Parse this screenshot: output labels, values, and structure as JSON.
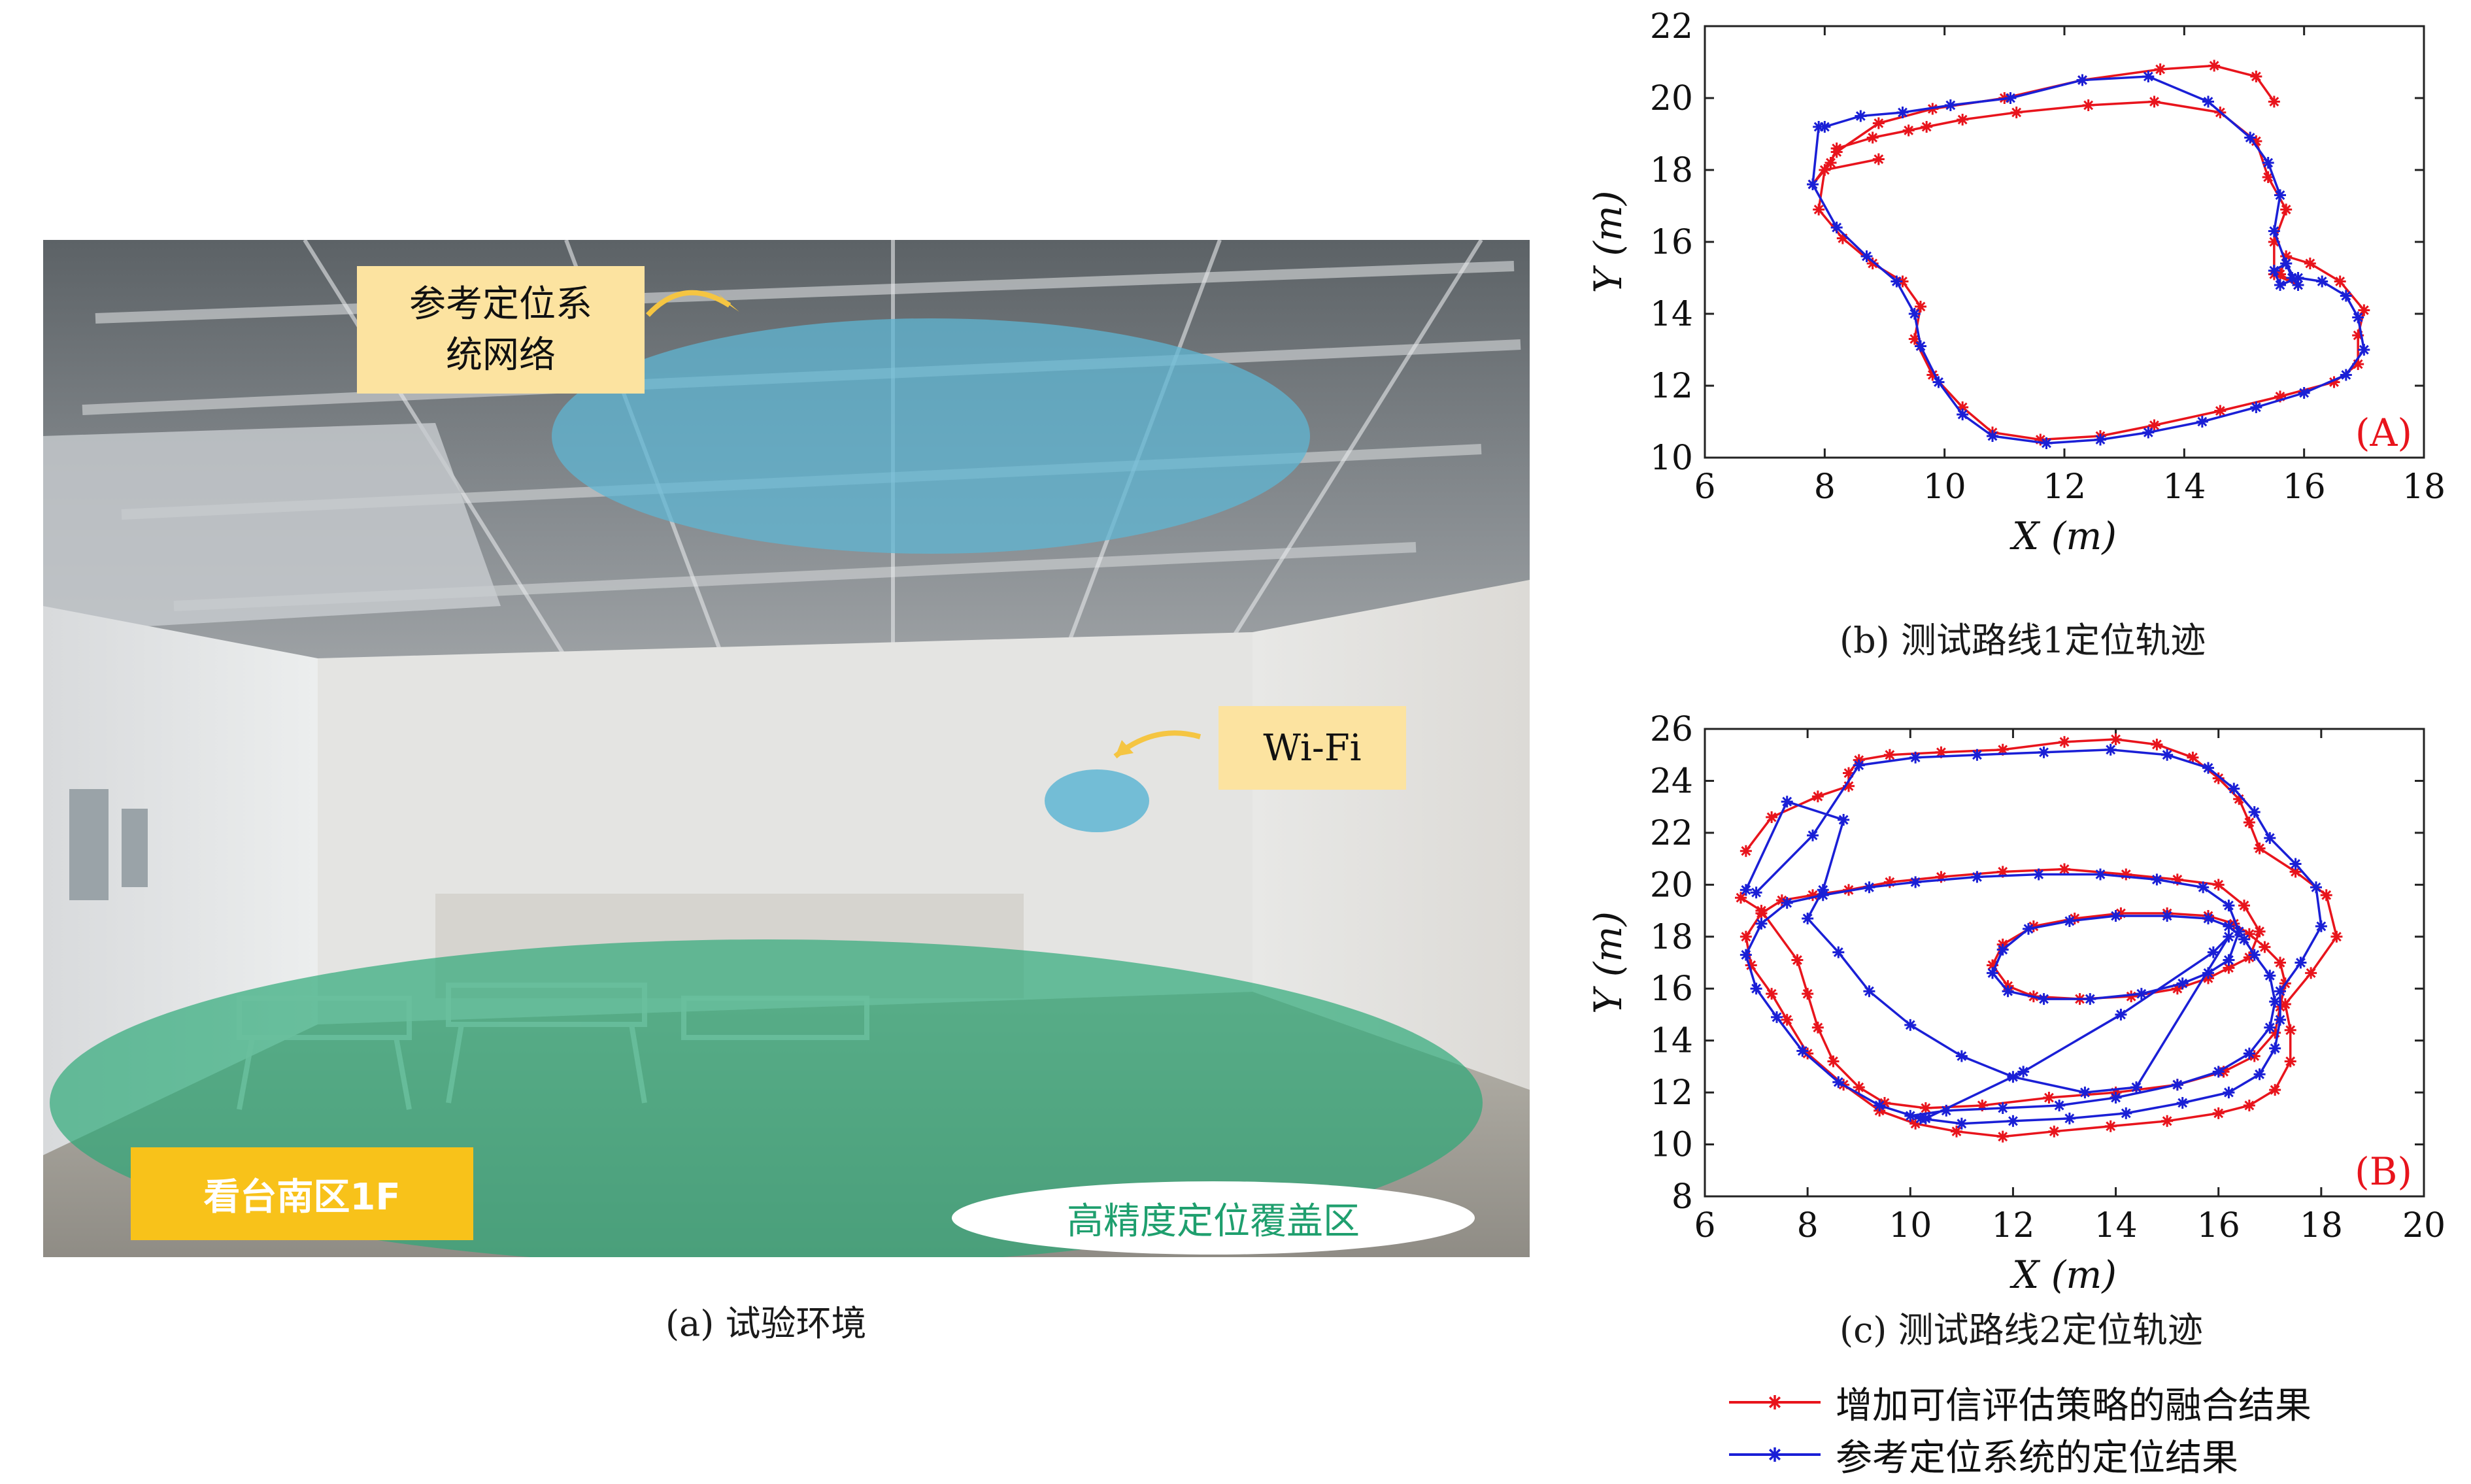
{
  "photo": {
    "caption": "(a) 试验环境",
    "annotations": {
      "ref_network": "参考定位系\n统网络",
      "wifi": "Wi-Fi",
      "area": "看台南区1F",
      "coverage": "高精度定位覆盖区"
    },
    "colors": {
      "ref_ellipse": "#5fb6d3",
      "wifi_ellipse": "#5fb6d3",
      "coverage": "#2aa876",
      "label_bg": "#fce3a0",
      "area_bg": "#f8c21a",
      "arrow": "#f5c542"
    }
  },
  "chart_data": [
    {
      "type": "line",
      "caption": "(b) 测试路线1定位轨迹",
      "panel_label": "(A)",
      "xlabel": "X (m)",
      "ylabel": "Y (m)",
      "xlim": [
        6,
        18
      ],
      "ylim": [
        10,
        22
      ],
      "xticks": [
        6,
        8,
        10,
        12,
        14,
        16,
        18
      ],
      "yticks": [
        10,
        12,
        14,
        16,
        18,
        20,
        22
      ],
      "grid": false,
      "series": [
        {
          "name": "增加可信评估策略的融合结果",
          "color": "#e8141c",
          "marker": "*",
          "x": [
            8.9,
            8.0,
            7.9,
            8.3,
            8.8,
            9.3,
            9.6,
            9.5,
            9.8,
            10.3,
            10.8,
            11.6,
            12.6,
            13.5,
            14.6,
            15.6,
            16.5,
            16.9,
            16.9,
            17.0,
            16.6,
            16.1,
            15.7,
            15.6,
            15.9,
            15.5,
            15.5,
            15.7,
            15.4,
            15.2,
            14.6,
            13.5,
            12.4,
            11.2,
            10.3,
            9.7,
            9.4,
            8.8,
            8.2,
            8.1,
            7.8,
            8.2,
            8.9,
            9.8,
            11.0,
            12.3,
            13.6,
            14.5,
            15.2,
            15.5
          ],
          "y": [
            18.3,
            18.0,
            16.9,
            16.1,
            15.4,
            14.9,
            14.2,
            13.3,
            12.3,
            11.4,
            10.7,
            10.5,
            10.6,
            10.9,
            11.3,
            11.7,
            12.1,
            12.6,
            13.4,
            14.1,
            14.9,
            15.4,
            15.6,
            15.1,
            14.8,
            15.1,
            16.0,
            16.9,
            17.8,
            18.8,
            19.6,
            19.9,
            19.8,
            19.6,
            19.4,
            19.2,
            19.1,
            18.9,
            18.6,
            18.2,
            17.6,
            18.5,
            19.3,
            19.7,
            20.0,
            20.5,
            20.8,
            20.9,
            20.6,
            19.9
          ]
        },
        {
          "name": "参考定位系统的定位结果",
          "color": "#1a1fd6",
          "marker": "*",
          "x": [
            7.9,
            7.8,
            8.2,
            8.7,
            9.2,
            9.5,
            9.6,
            9.9,
            10.3,
            10.8,
            11.7,
            12.6,
            13.4,
            14.3,
            15.2,
            16.0,
            16.7,
            17.0,
            16.9,
            16.7,
            16.3,
            15.9,
            15.6,
            15.5,
            15.7,
            15.8,
            15.9,
            15.7,
            15.5,
            15.6,
            15.4,
            15.1,
            14.4,
            13.4,
            12.3,
            11.1,
            10.1,
            9.3,
            8.6,
            8.0
          ],
          "y": [
            19.2,
            17.6,
            16.4,
            15.6,
            14.9,
            14.0,
            13.1,
            12.1,
            11.2,
            10.6,
            10.4,
            10.5,
            10.7,
            11.0,
            11.4,
            11.8,
            12.3,
            13.0,
            13.9,
            14.5,
            14.9,
            15.0,
            14.8,
            15.2,
            15.4,
            15.0,
            14.8,
            15.4,
            16.3,
            17.3,
            18.2,
            18.9,
            19.9,
            20.6,
            20.5,
            20.0,
            19.8,
            19.6,
            19.5,
            19.2
          ]
        }
      ]
    },
    {
      "type": "line",
      "caption": "(c) 测试路线2定位轨迹",
      "panel_label": "(B)",
      "xlabel": "X (m)",
      "ylabel": "Y (m)",
      "xlim": [
        6,
        20
      ],
      "ylim": [
        8,
        26
      ],
      "xticks": [
        6,
        8,
        10,
        12,
        14,
        16,
        18,
        20
      ],
      "yticks": [
        8,
        10,
        12,
        14,
        16,
        18,
        20,
        22,
        24,
        26
      ],
      "grid": false,
      "series": [
        {
          "name": "增加可信评估策略的融合结果",
          "color": "#e8141c",
          "marker": "*",
          "x": [
            6.8,
            7.3,
            8.2,
            8.8,
            8.8,
            9.0,
            9.6,
            10.6,
            11.8,
            13.0,
            14.0,
            14.8,
            15.5,
            16.0,
            16.4,
            16.6,
            16.8,
            17.5,
            18.1,
            18.3,
            17.8,
            17.3,
            17.4,
            17.4,
            17.1,
            16.6,
            16.0,
            15.0,
            13.9,
            12.8,
            11.8,
            10.9,
            10.1,
            9.4,
            8.7,
            8.0,
            7.6,
            7.3,
            6.9,
            6.8,
            7.1,
            7.5,
            8.1,
            8.8,
            9.6,
            10.6,
            11.8,
            13.0,
            14.2,
            15.2,
            16.0,
            16.5,
            16.8,
            16.6,
            16.2,
            15.8,
            15.2,
            14.3,
            13.3,
            12.4,
            11.9,
            11.6,
            11.8,
            12.4,
            13.2,
            14.1,
            15.0,
            15.8,
            16.3,
            16.6,
            16.9,
            17.2,
            17.3,
            17.2,
            17.1,
            16.7,
            16.1,
            15.2,
            14.0,
            12.7,
            11.4,
            10.3,
            9.5,
            9.0,
            8.5,
            8.2,
            8.0,
            7.8,
            7.1,
            6.7
          ],
          "y": [
            21.3,
            22.6,
            23.4,
            23.8,
            24.3,
            24.8,
            25.0,
            25.1,
            25.2,
            25.5,
            25.6,
            25.4,
            24.9,
            24.1,
            23.3,
            22.4,
            21.4,
            20.5,
            19.6,
            18.0,
            16.6,
            15.4,
            14.4,
            13.2,
            12.1,
            11.5,
            11.2,
            10.9,
            10.7,
            10.5,
            10.3,
            10.5,
            10.8,
            11.3,
            12.3,
            13.5,
            14.8,
            15.8,
            16.9,
            18.0,
            18.9,
            19.4,
            19.6,
            19.8,
            20.1,
            20.3,
            20.5,
            20.6,
            20.4,
            20.2,
            20.0,
            19.2,
            18.2,
            17.2,
            16.8,
            16.4,
            16.0,
            15.7,
            15.6,
            15.7,
            16.1,
            16.9,
            17.7,
            18.4,
            18.7,
            18.9,
            18.9,
            18.8,
            18.5,
            18.1,
            17.6,
            17.0,
            16.2,
            15.3,
            14.3,
            13.4,
            12.8,
            12.3,
            12.0,
            11.8,
            11.5,
            11.4,
            11.6,
            12.2,
            13.2,
            14.5,
            15.8,
            17.1,
            19.0,
            19.5
          ]
        },
        {
          "name": "参考定位系统的定位结果",
          "color": "#1a1fd6",
          "marker": "*",
          "x": [
            7.0,
            8.1,
            9.0,
            10.1,
            11.3,
            12.6,
            13.9,
            15.0,
            15.8,
            16.3,
            16.7,
            17.0,
            17.5,
            17.9,
            18.0,
            17.6,
            17.2,
            17.2,
            17.1,
            16.8,
            16.2,
            15.3,
            14.2,
            13.1,
            12.0,
            11.0,
            10.2,
            9.4,
            8.6,
            7.9,
            7.4,
            7.0,
            6.8,
            7.1,
            7.6,
            8.3,
            9.2,
            10.1,
            11.3,
            12.5,
            13.7,
            14.8,
            15.7,
            16.2,
            16.4,
            16.2,
            15.8,
            15.3,
            14.5,
            13.5,
            12.6,
            11.9,
            11.6,
            11.8,
            12.3,
            13.1,
            14.0,
            15.0,
            15.8,
            16.2,
            16.5,
            16.7,
            17.0,
            17.1,
            17.0,
            16.6,
            16.0,
            15.2,
            14.0,
            12.9,
            11.8,
            10.7,
            10.0,
            10.3,
            12.2,
            14.1,
            15.9,
            16.2,
            14.4,
            13.4,
            12.0,
            11.0,
            10.0,
            9.2,
            8.6,
            8.0,
            8.3,
            8.7,
            7.6,
            6.8
          ],
          "y": [
            19.7,
            21.9,
            24.6,
            24.9,
            25.0,
            25.1,
            25.2,
            25.0,
            24.5,
            23.7,
            22.8,
            21.8,
            20.8,
            19.9,
            18.4,
            17.0,
            15.9,
            14.8,
            13.7,
            12.7,
            12.0,
            11.6,
            11.2,
            11.0,
            10.9,
            10.8,
            11.0,
            11.5,
            12.4,
            13.6,
            14.9,
            16.0,
            17.3,
            18.5,
            19.3,
            19.6,
            19.9,
            20.1,
            20.3,
            20.4,
            20.4,
            20.2,
            19.9,
            19.2,
            18.2,
            17.1,
            16.6,
            16.2,
            15.8,
            15.6,
            15.6,
            15.9,
            16.6,
            17.5,
            18.3,
            18.6,
            18.8,
            18.8,
            18.7,
            18.4,
            17.9,
            17.3,
            16.5,
            15.5,
            14.5,
            13.5,
            12.8,
            12.3,
            11.8,
            11.5,
            11.4,
            11.3,
            11.1,
            11.0,
            12.8,
            15.0,
            17.4,
            18.0,
            12.2,
            12.0,
            12.6,
            13.4,
            14.6,
            15.9,
            17.4,
            18.7,
            19.8,
            22.5,
            23.2,
            19.8
          ]
        }
      ]
    }
  ],
  "legend": [
    {
      "label": "增加可信评估策略的融合结果",
      "color": "#e8141c"
    },
    {
      "label": "参考定位系统的定位结果",
      "color": "#1a1fd6"
    }
  ]
}
